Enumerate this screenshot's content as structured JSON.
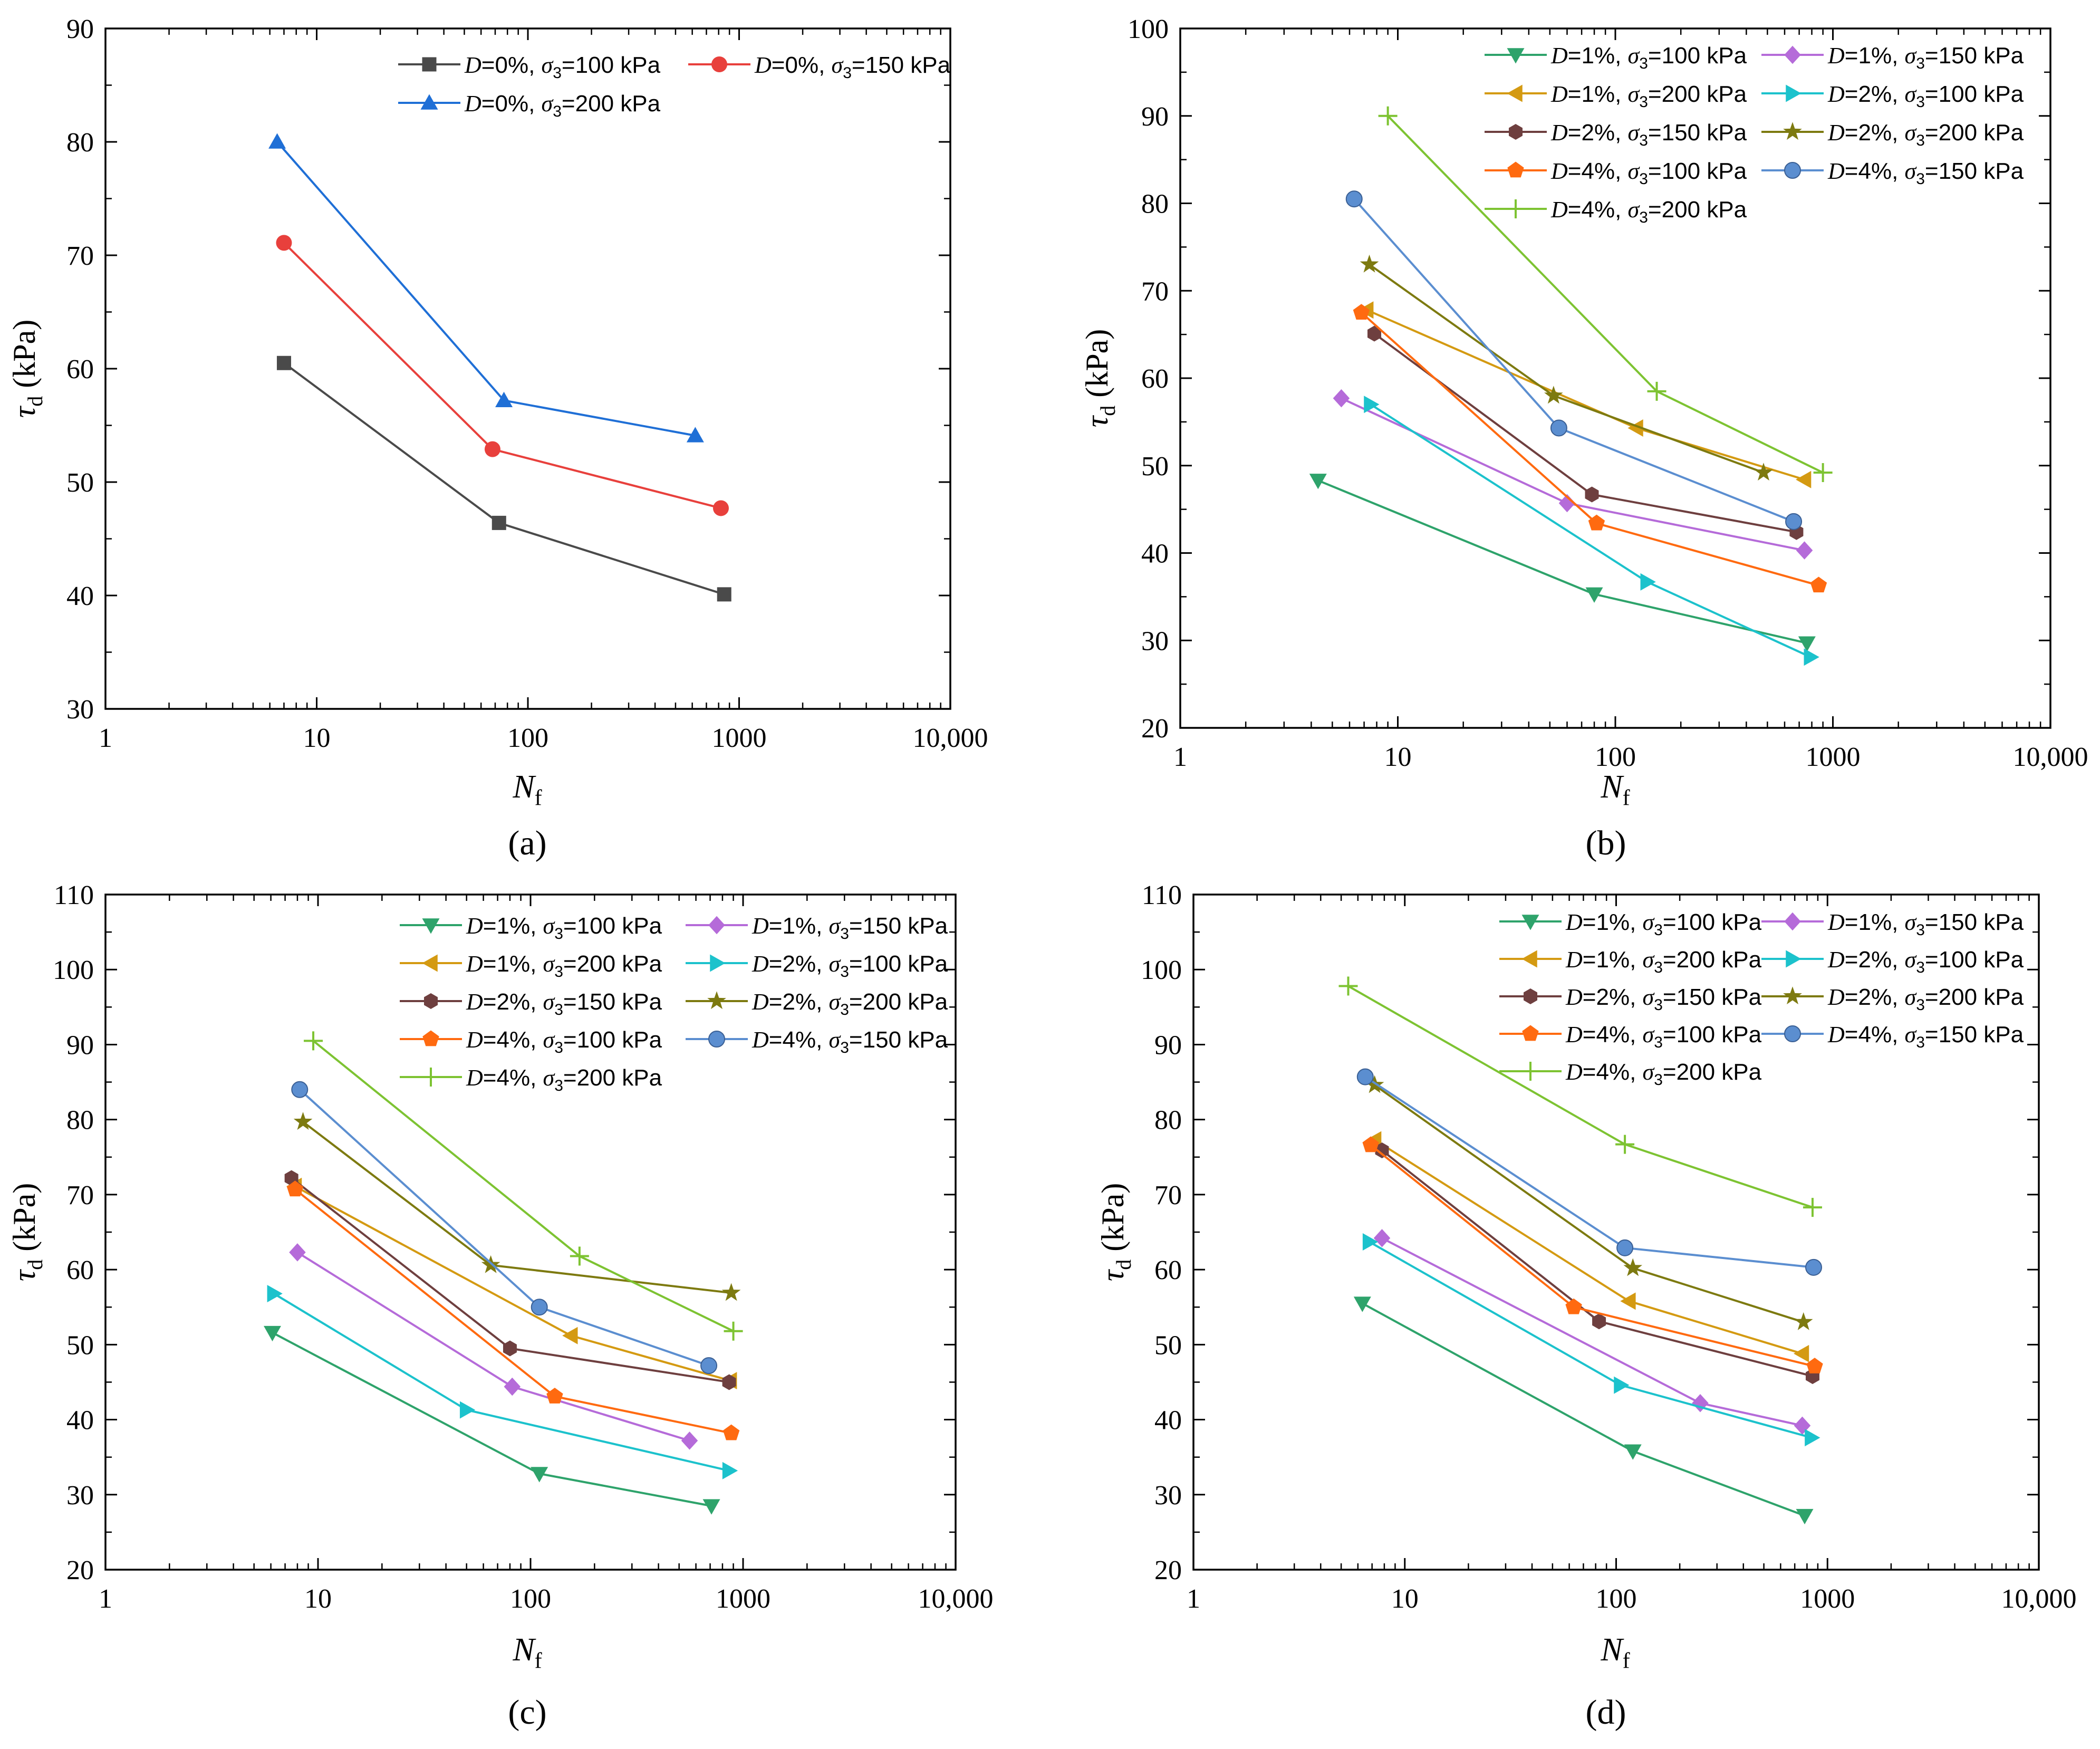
{
  "figure": {
    "y_title_sym": "τ",
    "y_title_sub": "d",
    "y_title_unit": " (kPa)",
    "x_title_sym": "N",
    "x_title_sub": "f"
  },
  "chart_data": [
    {
      "type": "line",
      "panel_label": "(a)",
      "x_scale": "log",
      "xlim": [
        1,
        10000
      ],
      "ylim": [
        30,
        90
      ],
      "x_ticks": [
        1,
        10,
        100,
        1000,
        10000
      ],
      "x_tick_labels": [
        "1",
        "10",
        "100",
        "1000",
        "10,000"
      ],
      "y_ticks": [
        30,
        40,
        50,
        60,
        70,
        80,
        90
      ],
      "y_tick_labels": [
        "30",
        "40",
        "50",
        "60",
        "70",
        "80",
        "90"
      ],
      "legend_position": "top-right",
      "series": [
        {
          "name": "D=0%, σ3=100 kPa",
          "D": "0%",
          "s3": "100",
          "marker": "square",
          "color": "#4a4a4a",
          "x": [
            7,
            73,
            850
          ],
          "y": [
            60.5,
            46.4,
            40.1
          ]
        },
        {
          "name": "D=0%, σ3=150 kPa",
          "D": "0%",
          "s3": "150",
          "marker": "circle",
          "color": "#e8403c",
          "x": [
            7,
            68,
            820
          ],
          "y": [
            71.1,
            52.9,
            47.7
          ]
        },
        {
          "name": "D=0%, σ3=200 kPa",
          "D": "0%",
          "s3": "200",
          "marker": "triangle-up",
          "color": "#1f6fd6",
          "x": [
            6.5,
            77,
            620
          ],
          "y": [
            80,
            57.2,
            54.1
          ]
        }
      ]
    },
    {
      "type": "line",
      "panel_label": "(b)",
      "x_scale": "log",
      "xlim": [
        1,
        10000
      ],
      "ylim": [
        20,
        100
      ],
      "x_ticks": [
        1,
        10,
        100,
        1000,
        10000
      ],
      "x_tick_labels": [
        "1",
        "10",
        "100",
        "1000",
        "10,000"
      ],
      "y_ticks": [
        20,
        30,
        40,
        50,
        60,
        70,
        80,
        90,
        100
      ],
      "y_tick_labels": [
        "20",
        "30",
        "40",
        "50",
        "60",
        "70",
        "80",
        "90",
        "100"
      ],
      "legend_position": "top-right",
      "series": [
        {
          "name": "D=1%, σ3=100 kPa",
          "D": "1%",
          "s3": "100",
          "marker": "triangle-down",
          "color": "#2ea36b",
          "x": [
            4.3,
            80,
            760
          ],
          "y": [
            48.3,
            35.3,
            29.7
          ]
        },
        {
          "name": "D=1%, σ3=150 kPa",
          "D": "1%",
          "s3": "150",
          "marker": "diamond",
          "color": "#b56bd9",
          "x": [
            5.5,
            60,
            740
          ],
          "y": [
            57.7,
            45.7,
            40.3
          ]
        },
        {
          "name": "D=1%, σ3=200 kPa",
          "D": "1%",
          "s3": "200",
          "marker": "triangle-left",
          "color": "#d49a12",
          "x": [
            7.2,
            125,
            740
          ],
          "y": [
            67.8,
            54.3,
            48.4
          ]
        },
        {
          "name": "D=2%, σ3=100 kPa",
          "D": "2%",
          "s3": "100",
          "marker": "triangle-right",
          "color": "#1cc2cc",
          "x": [
            7.5,
            140,
            790
          ],
          "y": [
            57,
            36.7,
            28.1
          ]
        },
        {
          "name": "D=2%, σ3=150 kPa",
          "D": "2%",
          "s3": "150",
          "marker": "hexagon",
          "color": "#6e3f3f",
          "x": [
            7.8,
            78,
            680
          ],
          "y": [
            65.1,
            46.7,
            42.4
          ]
        },
        {
          "name": "D=2%, σ3=200 kPa",
          "D": "2%",
          "s3": "200",
          "marker": "star",
          "color": "#7d7a10",
          "x": [
            7.4,
            52,
            480
          ],
          "y": [
            73,
            58,
            49.2
          ]
        },
        {
          "name": "D=4%, σ3=100 kPa",
          "D": "4%",
          "s3": "100",
          "marker": "pentagon",
          "color": "#ff6a10",
          "x": [
            6.8,
            82,
            860
          ],
          "y": [
            67.5,
            43.4,
            36.3
          ]
        },
        {
          "name": "D=4%, σ3=150 kPa",
          "D": "4%",
          "s3": "150",
          "marker": "sphere",
          "color": "#5b8ed0",
          "x": [
            6.3,
            55,
            660
          ],
          "y": [
            80.5,
            54.3,
            43.6
          ]
        },
        {
          "name": "D=4%, σ3=200 kPa",
          "D": "4%",
          "s3": "200",
          "marker": "plus",
          "color": "#7dc332",
          "x": [
            9,
            155,
            900
          ],
          "y": [
            90,
            58.5,
            49.2
          ]
        }
      ]
    },
    {
      "type": "line",
      "panel_label": "(c)",
      "x_scale": "log",
      "xlim": [
        1,
        10000
      ],
      "ylim": [
        20,
        110
      ],
      "x_ticks": [
        1,
        10,
        100,
        1000,
        10000
      ],
      "x_tick_labels": [
        "1",
        "10",
        "100",
        "1000",
        "10,000"
      ],
      "y_ticks": [
        20,
        30,
        40,
        50,
        60,
        70,
        80,
        90,
        100,
        110
      ],
      "y_tick_labels": [
        "20",
        "30",
        "40",
        "50",
        "60",
        "70",
        "80",
        "90",
        "100",
        "110"
      ],
      "legend_position": "top-right",
      "series": [
        {
          "name": "D=1%, σ3=100 kPa",
          "D": "1%",
          "s3": "100",
          "marker": "triangle-down",
          "color": "#2ea36b",
          "x": [
            6.1,
            110,
            710
          ],
          "y": [
            51.6,
            32.8,
            28.5
          ]
        },
        {
          "name": "D=1%, σ3=150 kPa",
          "D": "1%",
          "s3": "150",
          "marker": "diamond",
          "color": "#b56bd9",
          "x": [
            8,
            82,
            560
          ],
          "y": [
            62.3,
            44.4,
            37.2
          ]
        },
        {
          "name": "D=1%, σ3=200 kPa",
          "D": "1%",
          "s3": "200",
          "marker": "triangle-left",
          "color": "#d49a12",
          "x": [
            7.8,
            155,
            870
          ],
          "y": [
            71.1,
            51.2,
            45.2
          ]
        },
        {
          "name": "D=2%, σ3=100 kPa",
          "D": "2%",
          "s3": "100",
          "marker": "triangle-right",
          "color": "#1cc2cc",
          "x": [
            6.2,
            50,
            860
          ],
          "y": [
            56.8,
            41.3,
            33.2
          ]
        },
        {
          "name": "D=2%, σ3=150 kPa",
          "D": "2%",
          "s3": "150",
          "marker": "hexagon",
          "color": "#6e3f3f",
          "x": [
            7.5,
            80,
            860
          ],
          "y": [
            72.2,
            49.5,
            45
          ]
        },
        {
          "name": "D=2%, σ3=200 kPa",
          "D": "2%",
          "s3": "200",
          "marker": "star",
          "color": "#7d7a10",
          "x": [
            8.5,
            65,
            880
          ],
          "y": [
            79.7,
            60.6,
            56.9
          ]
        },
        {
          "name": "D=4%, σ3=100 kPa",
          "D": "4%",
          "s3": "100",
          "marker": "pentagon",
          "color": "#ff6a10",
          "x": [
            7.8,
            130,
            880
          ],
          "y": [
            70.7,
            43.1,
            38.2
          ]
        },
        {
          "name": "D=4%, σ3=150 kPa",
          "D": "4%",
          "s3": "150",
          "marker": "sphere",
          "color": "#5b8ed0",
          "x": [
            8.2,
            110,
            690
          ],
          "y": [
            84,
            55,
            47.2
          ]
        },
        {
          "name": "D=4%, σ3=200 kPa",
          "D": "4%",
          "s3": "200",
          "marker": "plus",
          "color": "#7dc332",
          "x": [
            9.5,
            170,
            900
          ],
          "y": [
            90.5,
            61.8,
            51.8
          ]
        }
      ]
    },
    {
      "type": "line",
      "panel_label": "(d)",
      "x_scale": "log",
      "xlim": [
        1,
        10000
      ],
      "ylim": [
        20,
        110
      ],
      "x_ticks": [
        1,
        10,
        100,
        1000,
        10000
      ],
      "x_tick_labels": [
        "1",
        "10",
        "100",
        "1000",
        "10,000"
      ],
      "y_ticks": [
        20,
        30,
        40,
        50,
        60,
        70,
        80,
        90,
        100,
        110
      ],
      "y_tick_labels": [
        "20",
        "30",
        "40",
        "50",
        "60",
        "70",
        "80",
        "90",
        "100",
        "110"
      ],
      "legend_position": "top-right",
      "series": [
        {
          "name": "D=1%, σ3=100 kPa",
          "D": "1%",
          "s3": "100",
          "marker": "triangle-down",
          "color": "#2ea36b",
          "x": [
            6.3,
            120,
            780
          ],
          "y": [
            55.5,
            35.8,
            27.2
          ]
        },
        {
          "name": "D=1%, σ3=150 kPa",
          "D": "1%",
          "s3": "150",
          "marker": "diamond",
          "color": "#b56bd9",
          "x": [
            7.8,
            250,
            760
          ],
          "y": [
            64.2,
            42.2,
            39.2
          ]
        },
        {
          "name": "D=1%, σ3=200 kPa",
          "D": "1%",
          "s3": "200",
          "marker": "triangle-left",
          "color": "#d49a12",
          "x": [
            7.2,
            115,
            760
          ],
          "y": [
            77.3,
            55.8,
            48.8
          ]
        },
        {
          "name": "D=2%, σ3=100 kPa",
          "D": "2%",
          "s3": "100",
          "marker": "triangle-right",
          "color": "#1cc2cc",
          "x": [
            6.8,
            105,
            840
          ],
          "y": [
            63.7,
            44.6,
            37.6
          ]
        },
        {
          "name": "D=2%, σ3=150 kPa",
          "D": "2%",
          "s3": "150",
          "marker": "hexagon",
          "color": "#6e3f3f",
          "x": [
            7.8,
            83,
            850
          ],
          "y": [
            75.9,
            53.1,
            45.8
          ]
        },
        {
          "name": "D=2%, σ3=200 kPa",
          "D": "2%",
          "s3": "200",
          "marker": "star",
          "color": "#7d7a10",
          "x": [
            7.2,
            120,
            770
          ],
          "y": [
            84.6,
            60.2,
            53
          ]
        },
        {
          "name": "D=4%, σ3=100 kPa",
          "D": "4%",
          "s3": "100",
          "marker": "pentagon",
          "color": "#ff6a10",
          "x": [
            6.9,
            63,
            870
          ],
          "y": [
            76.6,
            55,
            47.1
          ]
        },
        {
          "name": "D=4%, σ3=150 kPa",
          "D": "4%",
          "s3": "150",
          "marker": "sphere",
          "color": "#5b8ed0",
          "x": [
            6.5,
            110,
            860
          ],
          "y": [
            85.7,
            62.9,
            60.3
          ]
        },
        {
          "name": "D=4%, σ3=200 kPa",
          "D": "4%",
          "s3": "200",
          "marker": "plus",
          "color": "#7dc332",
          "x": [
            5.4,
            110,
            850
          ],
          "y": [
            97.8,
            76.7,
            68.3
          ]
        }
      ]
    }
  ]
}
